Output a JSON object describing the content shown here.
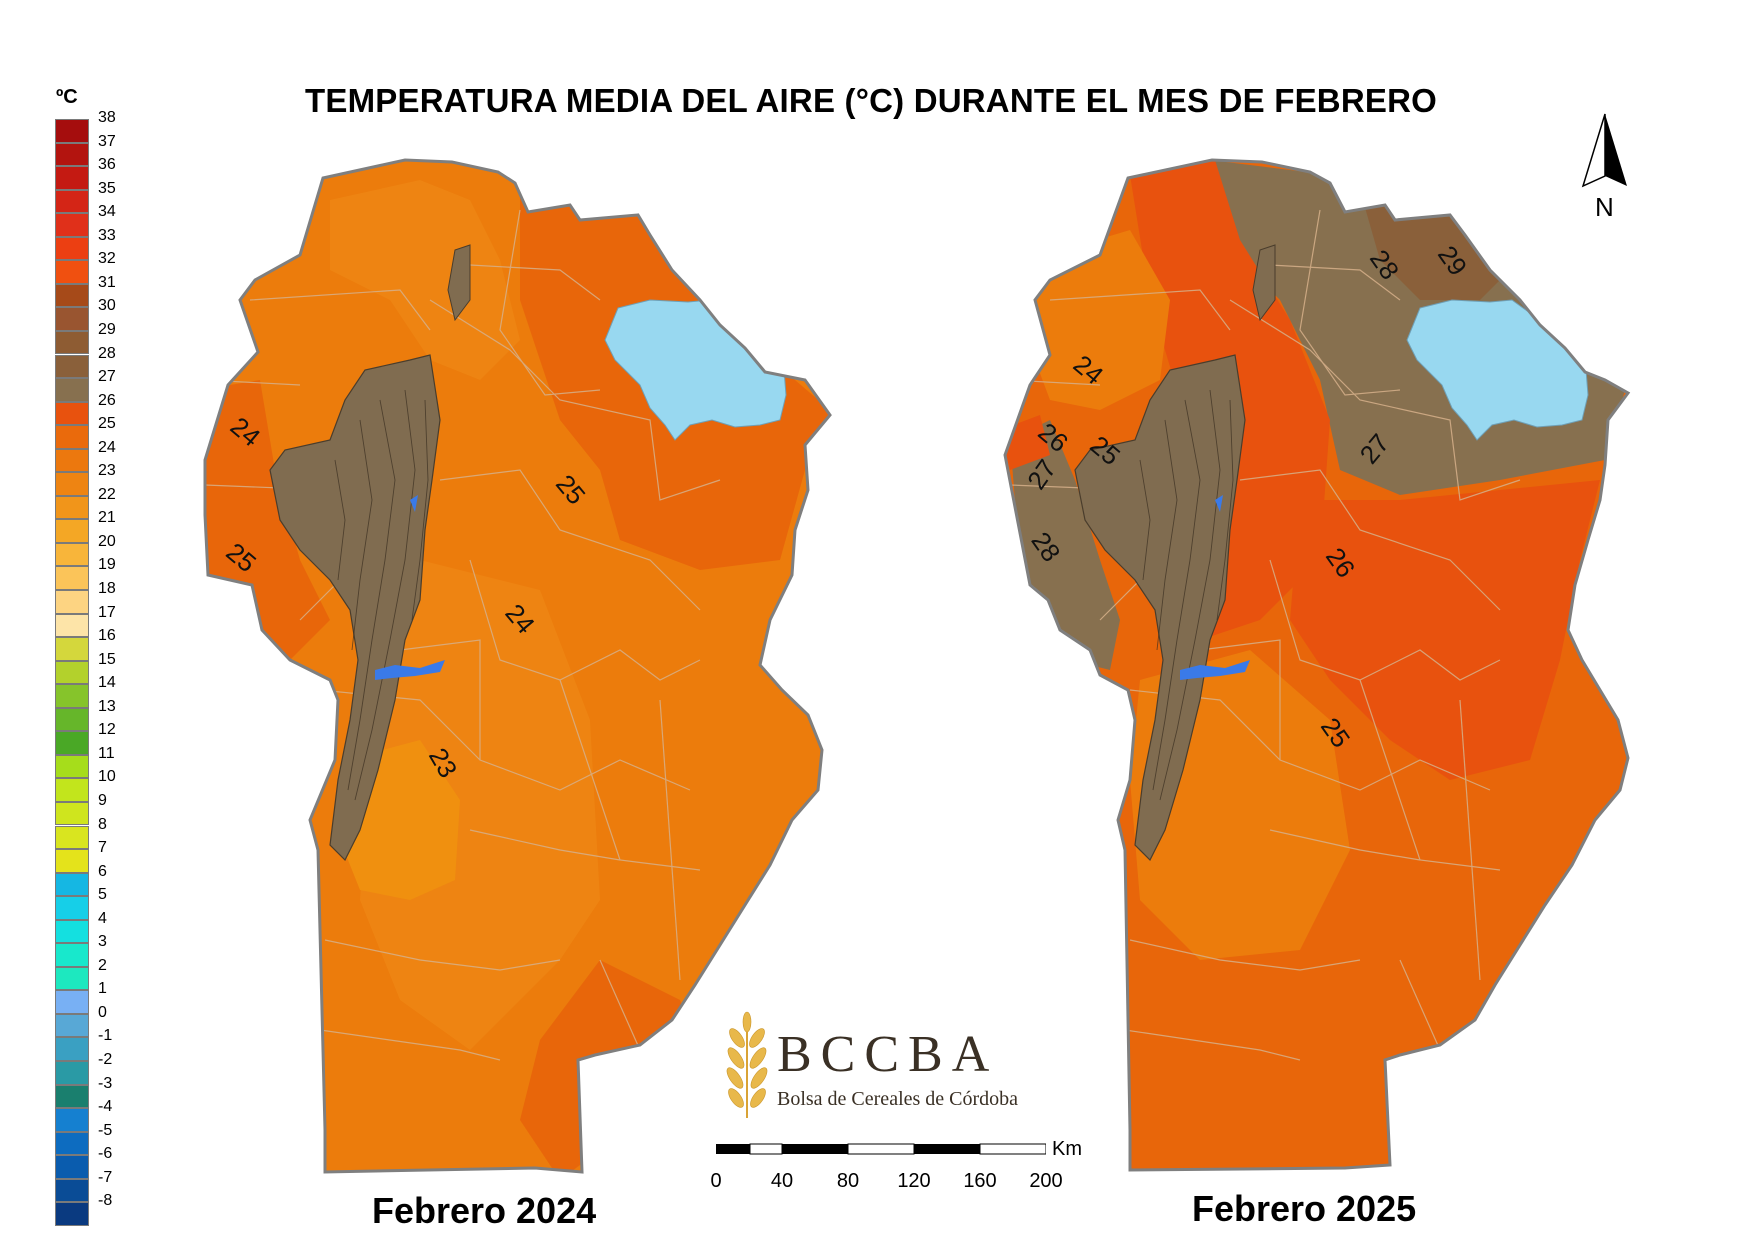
{
  "title": "TEMPERATURA MEDIA DEL AIRE (°C) DURANTE EL MES DE FEBRERO",
  "legend": {
    "unit": "ºC",
    "items": [
      {
        "label": "38",
        "color": "#a50d0d"
      },
      {
        "label": "37",
        "color": "#b3140f"
      },
      {
        "label": "36",
        "color": "#c41a12"
      },
      {
        "label": "35",
        "color": "#d42516"
      },
      {
        "label": "34",
        "color": "#e0301a"
      },
      {
        "label": "33",
        "color": "#ec3f12"
      },
      {
        "label": "32",
        "color": "#f05010"
      },
      {
        "label": "31",
        "color": "#a64a19"
      },
      {
        "label": "30",
        "color": "#995530"
      },
      {
        "label": "29",
        "color": "#8e5c33"
      },
      {
        "label": "28",
        "color": "#8a603a"
      },
      {
        "label": "27",
        "color": "#87704f"
      },
      {
        "label": "26",
        "color": "#e8520e"
      },
      {
        "label": "25",
        "color": "#ea6a0c"
      },
      {
        "label": "24",
        "color": "#ec780e"
      },
      {
        "label": "23",
        "color": "#ee8412"
      },
      {
        "label": "22",
        "color": "#f1951a"
      },
      {
        "label": "21",
        "color": "#f4a725"
      },
      {
        "label": "20",
        "color": "#f8b53a"
      },
      {
        "label": "19",
        "color": "#fbc459"
      },
      {
        "label": "18",
        "color": "#fdd482"
      },
      {
        "label": "17",
        "color": "#fde4a8"
      },
      {
        "label": "16",
        "color": "#d4d73c"
      },
      {
        "label": "15",
        "color": "#b3d12c"
      },
      {
        "label": "14",
        "color": "#86c42b"
      },
      {
        "label": "13",
        "color": "#66b62a"
      },
      {
        "label": "12",
        "color": "#4aa826"
      },
      {
        "label": "11",
        "color": "#a6dd1b"
      },
      {
        "label": "10",
        "color": "#c2e51c"
      },
      {
        "label": "9",
        "color": "#cfe51e"
      },
      {
        "label": "8",
        "color": "#d9e51f"
      },
      {
        "label": "7",
        "color": "#e4e31b"
      },
      {
        "label": "6",
        "color": "#15b7e3"
      },
      {
        "label": "5",
        "color": "#16cfe8"
      },
      {
        "label": "4",
        "color": "#14e0e0"
      },
      {
        "label": "3",
        "color": "#18e8cc"
      },
      {
        "label": "2",
        "color": "#1de8bf"
      },
      {
        "label": "1",
        "color": "#78b0f4"
      },
      {
        "label": "0",
        "color": "#58a8d6"
      },
      {
        "label": "-1",
        "color": "#3aa0c2"
      },
      {
        "label": "-2",
        "color": "#2a9aa5"
      },
      {
        "label": "-3",
        "color": "#1a7f6e"
      },
      {
        "label": "-4",
        "color": "#1580d0"
      },
      {
        "label": "-5",
        "color": "#0d6cc0"
      },
      {
        "label": "-6",
        "color": "#0a5cae"
      },
      {
        "label": "-7",
        "color": "#0a4c96"
      },
      {
        "label": "-8",
        "color": "#0a3a80"
      }
    ]
  },
  "maps": {
    "left": {
      "caption": "Febrero 2024",
      "isolines": [
        "24",
        "25",
        "25",
        "24",
        "23"
      ]
    },
    "right": {
      "caption": "Febrero 2025",
      "isolines": [
        "24",
        "26",
        "25",
        "27",
        "28",
        "28",
        "29",
        "27",
        "26",
        "25"
      ]
    }
  },
  "logo": {
    "name": "BCCBA",
    "subtitle": "Bolsa de Cereales de Córdoba"
  },
  "scalebar": {
    "unit": "Km",
    "ticks": [
      "0",
      "40",
      "80",
      "120",
      "160",
      "200"
    ]
  },
  "north_label": "N",
  "colors": {
    "sierras": "#806c50",
    "lake": "#98d8f0",
    "border": "#7f7f7f",
    "temp23": "#ee8a10",
    "temp24": "#ec7c0c",
    "temp25": "#e8660a",
    "temp26": "#e8520e",
    "temp27": "#87704f"
  }
}
